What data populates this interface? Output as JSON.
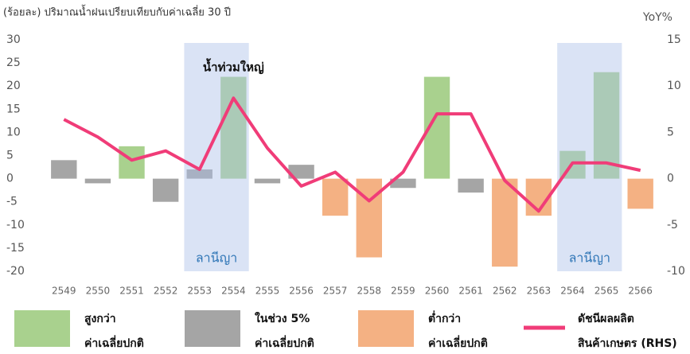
{
  "chart_data": {
    "type": "bar_line",
    "title": "(ร้อยละ) ปริมาณน้ำฝนเปรียบเทียบกับค่าเฉลี่ย 30 ปี",
    "y2_label": "YoY%",
    "categories": [
      "2549",
      "2550",
      "2551",
      "2552",
      "2553",
      "2554",
      "2555",
      "2556",
      "2557",
      "2558",
      "2559",
      "2560",
      "2561",
      "2562",
      "2563",
      "2564",
      "2565",
      "2566"
    ],
    "series": [
      {
        "name": [
          "สูงกว่า",
          "ค่าเฉลี่ยปกติ"
        ],
        "color": "#a9d18e",
        "kind": "bar",
        "values": [
          null,
          null,
          7,
          null,
          null,
          22,
          null,
          null,
          null,
          null,
          null,
          22,
          null,
          null,
          null,
          6,
          23,
          null
        ]
      },
      {
        "name": [
          "ในช่วง 5%",
          "ค่าเฉลี่ยปกติ"
        ],
        "color": "#a5a5a5",
        "kind": "bar",
        "values": [
          4,
          -1,
          null,
          -5,
          2,
          null,
          -1,
          3,
          null,
          null,
          -2,
          null,
          -3,
          null,
          null,
          null,
          null,
          null
        ]
      },
      {
        "name": [
          "ต่ำกว่า",
          "ค่าเฉลี่ยปกติ"
        ],
        "color": "#f4b183",
        "kind": "bar",
        "values": [
          null,
          null,
          null,
          null,
          null,
          null,
          null,
          null,
          -8,
          -17,
          null,
          null,
          null,
          -19,
          -8,
          null,
          null,
          -6.5
        ]
      },
      {
        "name": [
          "ดัชนีผลผลิต",
          "สินค้าเกษตร (RHS)"
        ],
        "color": "#f03c78",
        "kind": "line",
        "axis": "y2",
        "values": [
          6.4,
          4.5,
          2,
          3,
          1,
          8.7,
          3.3,
          -0.8,
          0.7,
          -2.4,
          0.7,
          7,
          7,
          -0.2,
          -3.5,
          1.7,
          1.7,
          0.9
        ]
      }
    ],
    "shaded": [
      {
        "from": "2553",
        "to": "2554",
        "label": "ลานีญา"
      },
      {
        "from": "2564",
        "to": "2565",
        "label": "ลานีญา"
      }
    ],
    "annotations": [
      {
        "text": "น้ำท่วมใหญ่",
        "x": "2554",
        "y": 24
      }
    ],
    "ylim": [
      -20,
      30
    ],
    "yticks": [
      -20,
      -15,
      -10,
      -5,
      0,
      5,
      10,
      15,
      20,
      25,
      30
    ],
    "y2lim": [
      -10,
      15
    ],
    "y2ticks": [
      -10,
      -5,
      0,
      5,
      10,
      15
    ]
  }
}
